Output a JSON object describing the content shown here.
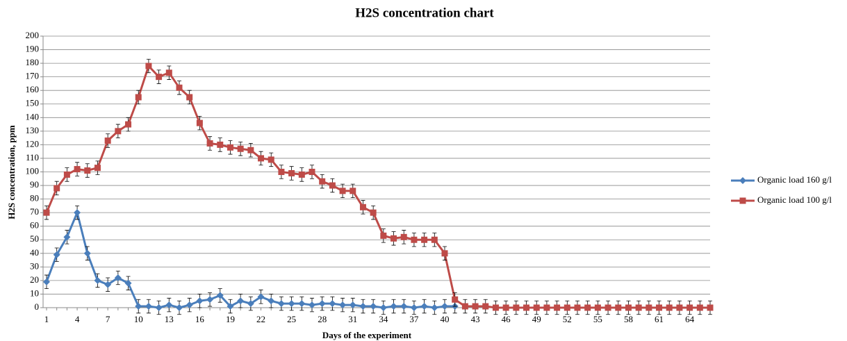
{
  "chart_data": {
    "type": "line",
    "title": "H2S concentration chart",
    "x_label": "Days of the experiment",
    "y_label": "H2S concentration, ppm",
    "categories": [
      "1",
      null,
      null,
      "4",
      null,
      null,
      "7",
      null,
      null,
      "10",
      null,
      null,
      "13",
      null,
      null,
      "16",
      null,
      null,
      "19",
      null,
      null,
      "22",
      null,
      null,
      "25",
      null,
      null,
      "28",
      null,
      null,
      "31",
      null,
      null,
      "34",
      null,
      null,
      "37",
      null,
      null,
      "40",
      null,
      null,
      "43",
      null,
      null,
      "46",
      null,
      null,
      "49",
      null,
      null,
      "52",
      null,
      null,
      "55",
      null,
      null,
      "58",
      null,
      null,
      "61",
      null,
      null,
      "64",
      null,
      null
    ],
    "ylim": [
      0,
      200
    ],
    "yticks": [
      0,
      10,
      20,
      30,
      40,
      50,
      60,
      70,
      80,
      90,
      100,
      110,
      120,
      130,
      140,
      150,
      160,
      170,
      180,
      190,
      200
    ],
    "grid": true,
    "legend": "right",
    "series": [
      {
        "name": "Organic load 160 g/l",
        "color": "#4a7ebb",
        "marker": "diamond",
        "error": 5,
        "values": [
          19,
          39,
          52,
          70,
          40,
          20,
          17,
          22,
          18,
          1,
          1,
          0,
          2,
          0,
          2,
          5,
          6,
          9,
          1,
          5,
          3,
          8,
          5,
          3,
          3,
          3,
          2,
          3,
          3,
          2,
          2,
          1,
          1,
          0,
          1,
          1,
          0,
          1,
          0,
          1,
          1,
          null,
          null,
          null,
          null,
          null,
          null,
          null,
          null,
          null,
          null,
          null,
          null,
          null,
          null,
          null,
          null,
          null,
          null,
          null,
          null,
          null,
          null,
          null,
          null,
          null
        ]
      },
      {
        "name": "Organic load 100 g/l",
        "color": "#be4b48",
        "marker": "square",
        "error": 5,
        "values": [
          70,
          88,
          98,
          102,
          101,
          103,
          123,
          130,
          135,
          155,
          178,
          170,
          173,
          162,
          155,
          136,
          121,
          120,
          118,
          117,
          116,
          110,
          109,
          100,
          99,
          98,
          100,
          93,
          90,
          86,
          86,
          74,
          70,
          53,
          51,
          52,
          50,
          50,
          50,
          40,
          6,
          1,
          1,
          1,
          0,
          0,
          0,
          0,
          0,
          0,
          0,
          0,
          0,
          0,
          0,
          0,
          0,
          0,
          0,
          0,
          0,
          0,
          0,
          0,
          0,
          0
        ]
      }
    ]
  }
}
